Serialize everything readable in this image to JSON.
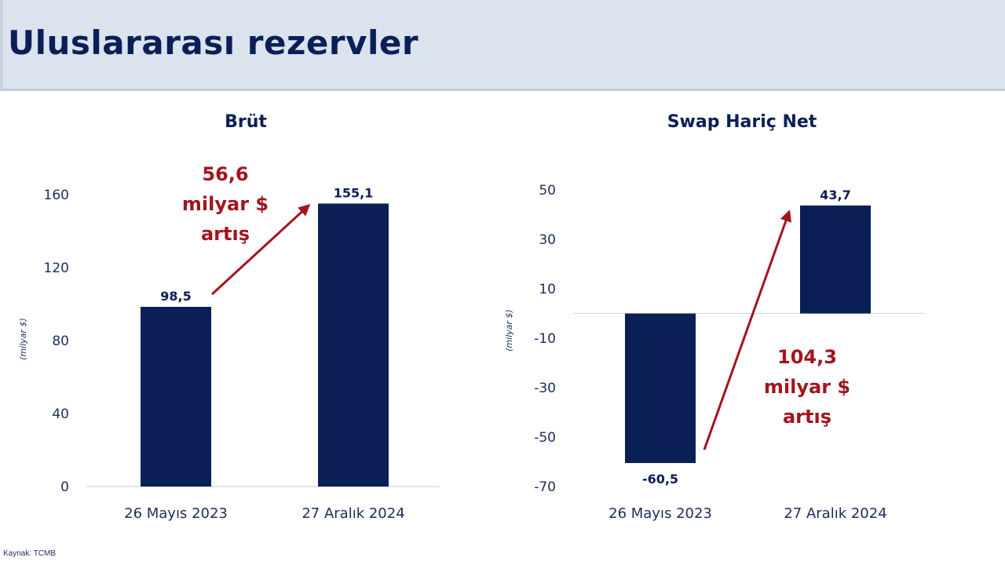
{
  "header": {
    "title": "Uluslararası rezervler"
  },
  "colors": {
    "bar": "#0b1f57",
    "accent": "#a3141d",
    "axis_text": "#1c2c5c",
    "grid": "#d9d9d9"
  },
  "source": "Kaynak: TCMB",
  "chart_data": [
    {
      "type": "bar",
      "title": "Brüt",
      "ylabel": "(milyar $)",
      "categories": [
        "26 Mayıs 2023",
        "27 Aralık 2024"
      ],
      "values": [
        98.5,
        155.1
      ],
      "value_labels": [
        "98,5",
        "155,1"
      ],
      "yticks": [
        0,
        40,
        80,
        120,
        160
      ],
      "ylim": [
        0,
        160
      ],
      "annotation": [
        "56,6",
        "milyar $",
        "artış"
      ]
    },
    {
      "type": "bar",
      "title": "Swap Hariç Net",
      "ylabel": "(milyar $)",
      "categories": [
        "26 Mayıs 2023",
        "27 Aralık 2024"
      ],
      "values": [
        -60.5,
        43.7
      ],
      "value_labels": [
        "-60,5",
        "43,7"
      ],
      "yticks": [
        -70,
        -50,
        -30,
        -10,
        10,
        30,
        50
      ],
      "ylim": [
        -70,
        50
      ],
      "annotation": [
        "104,3",
        "milyar $",
        "artış"
      ]
    }
  ]
}
